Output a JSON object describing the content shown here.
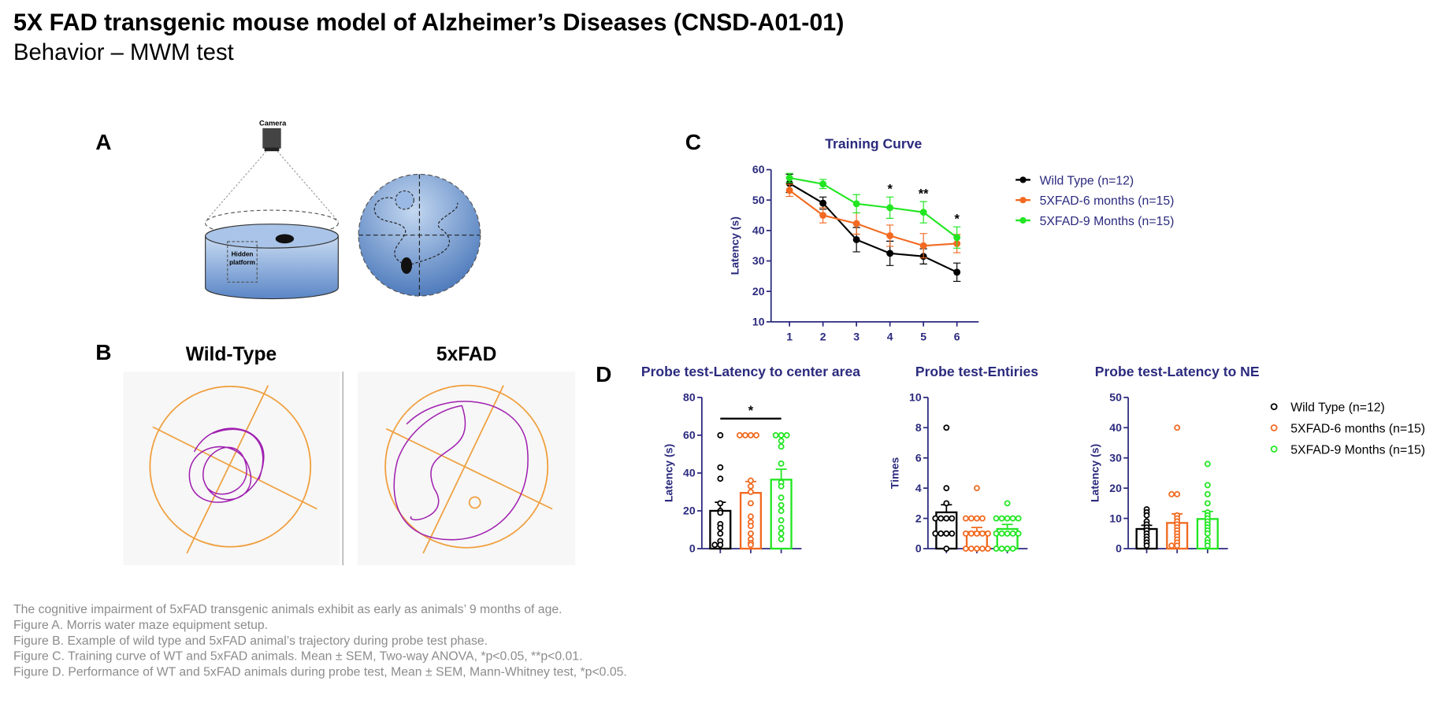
{
  "header": {
    "title": "5X FAD transgenic mouse model of Alzheimer’s Diseases (CNSD-A01-01)",
    "subtitle": "Behavior – MWM test"
  },
  "panels": {
    "a": "A",
    "b": "B",
    "c": "C",
    "d": "D"
  },
  "figure_a": {
    "camera": "Camera",
    "platform": [
      "Hidden",
      "platform"
    ]
  },
  "figure_b": {
    "left": "Wild-Type",
    "right": "5xFAD"
  },
  "chart_data": [
    {
      "type": "line",
      "title": "Training Curve",
      "y_label": "Latency (s)",
      "x": [
        1,
        2,
        3,
        4,
        5,
        6
      ],
      "xlim": [
        0.45,
        6.65
      ],
      "xticks": [
        1,
        2,
        3,
        4,
        5,
        6
      ],
      "ylim": [
        10,
        60
      ],
      "yticks": [
        10,
        20,
        30,
        40,
        50,
        60
      ],
      "legend": "right",
      "series": [
        {
          "name": "Wild Type (n=12)",
          "color": "#000000",
          "values": [
            55.5,
            49,
            37,
            32.5,
            31.5,
            26.3
          ],
          "errors": [
            3,
            2,
            4,
            4,
            2.5,
            3
          ]
        },
        {
          "name": "5XFAD-6 months (n=15)",
          "color": "#f26a21",
          "values": [
            53.2,
            45,
            42.3,
            38.3,
            35,
            35.7
          ],
          "errors": [
            2,
            2.5,
            3.5,
            3.5,
            4,
            3
          ]
        },
        {
          "name": "5XFAD-9 Months (n=15)",
          "color": "#22e622",
          "values": [
            57.3,
            55.3,
            48.8,
            47.5,
            46,
            37.7
          ],
          "errors": [
            1.5,
            1.5,
            3,
            3.5,
            3.5,
            3.5
          ]
        }
      ],
      "annotations": [
        {
          "x": 4,
          "text": "*"
        },
        {
          "x": 5,
          "text": "**"
        },
        {
          "x": 6,
          "text": "*"
        }
      ]
    },
    {
      "type": "bar-scatter",
      "title": "Probe test-Latency to center area",
      "y_label": "Latency (s)",
      "ylim": [
        0,
        80
      ],
      "yticks": [
        0,
        20,
        40,
        60,
        80
      ],
      "legend": "right",
      "series": [
        {
          "name": "Wild Type (n=12)",
          "color": "#000000",
          "mean": 20,
          "sem": 4.5,
          "values": [
            60,
            43,
            37,
            24,
            20,
            19,
            13,
            11,
            8,
            4,
            2,
            2
          ]
        },
        {
          "name": "5XFAD-6 months (n=15)",
          "color": "#f26a21",
          "mean": 29.5,
          "sem": 6,
          "values": [
            60,
            60,
            60,
            60,
            36,
            33,
            30,
            24,
            17,
            14,
            12,
            8,
            5,
            3,
            2
          ]
        },
        {
          "name": "5XFAD-9 Months (n=15)",
          "color": "#22e622",
          "mean": 36.5,
          "sem": 5.5,
          "values": [
            60,
            60,
            60,
            57,
            54,
            45,
            35,
            33,
            27,
            23,
            20,
            15,
            11,
            8,
            5
          ]
        }
      ],
      "significance": [
        {
          "from": 0,
          "to": 2,
          "text": "*"
        }
      ]
    },
    {
      "type": "bar-scatter",
      "title": "Probe test-Entiries",
      "y_label": "Times",
      "ylim": [
        0,
        10
      ],
      "yticks": [
        0,
        2,
        4,
        6,
        8,
        10
      ],
      "series": [
        {
          "color": "#000000",
          "mean": 2.4,
          "sem": 0.5,
          "values": [
            8,
            4,
            3,
            2,
            2,
            2,
            2,
            1,
            1,
            1,
            1,
            0
          ]
        },
        {
          "color": "#f26a21",
          "mean": 1.1,
          "sem": 0.3,
          "values": [
            4,
            2,
            2,
            2,
            2,
            1,
            1,
            1,
            1,
            1,
            0,
            0,
            0,
            0,
            0
          ]
        },
        {
          "color": "#22e622",
          "mean": 1.3,
          "sem": 0.3,
          "values": [
            3,
            2,
            2,
            2,
            2,
            2,
            1,
            1,
            1,
            1,
            1,
            0,
            0,
            0,
            0
          ]
        }
      ]
    },
    {
      "type": "bar-scatter",
      "title": "Probe test-Latency to NE",
      "y_label": "Latency (s)",
      "ylim": [
        0,
        50
      ],
      "yticks": [
        0,
        10,
        20,
        30,
        40,
        50
      ],
      "series": [
        {
          "color": "#000000",
          "mean": 6.5,
          "sem": 1.2,
          "values": [
            13,
            12,
            11,
            9,
            8,
            7,
            6,
            5,
            4,
            3,
            2,
            1
          ]
        },
        {
          "color": "#f26a21",
          "mean": 8.5,
          "sem": 3,
          "values": [
            40,
            18,
            18,
            11,
            10,
            9,
            8,
            7,
            6,
            5,
            4,
            3,
            2,
            1,
            1
          ]
        },
        {
          "color": "#22e622",
          "mean": 9.8,
          "sem": 2.5,
          "values": [
            28,
            21,
            18,
            15,
            12,
            11,
            10,
            9,
            8,
            7,
            6,
            5,
            3,
            2,
            1
          ]
        }
      ]
    }
  ],
  "captions": [
    "The cognitive impairment of 5xFAD transgenic animals exhibit as early as animals’ 9 months of age.",
    "Figure A. Morris water maze equipment setup.",
    "Figure B. Example of wild type and 5xFAD animal’s trajectory during probe test phase.",
    "Figure C. Training curve of WT and 5xFAD animals. Mean ± SEM, Two-way ANOVA, *p<0.05, **p<0.01.",
    "Figure D. Performance of WT and 5xFAD animals during probe test, Mean ± SEM, Mann-Whitney test, *p<0.05."
  ]
}
